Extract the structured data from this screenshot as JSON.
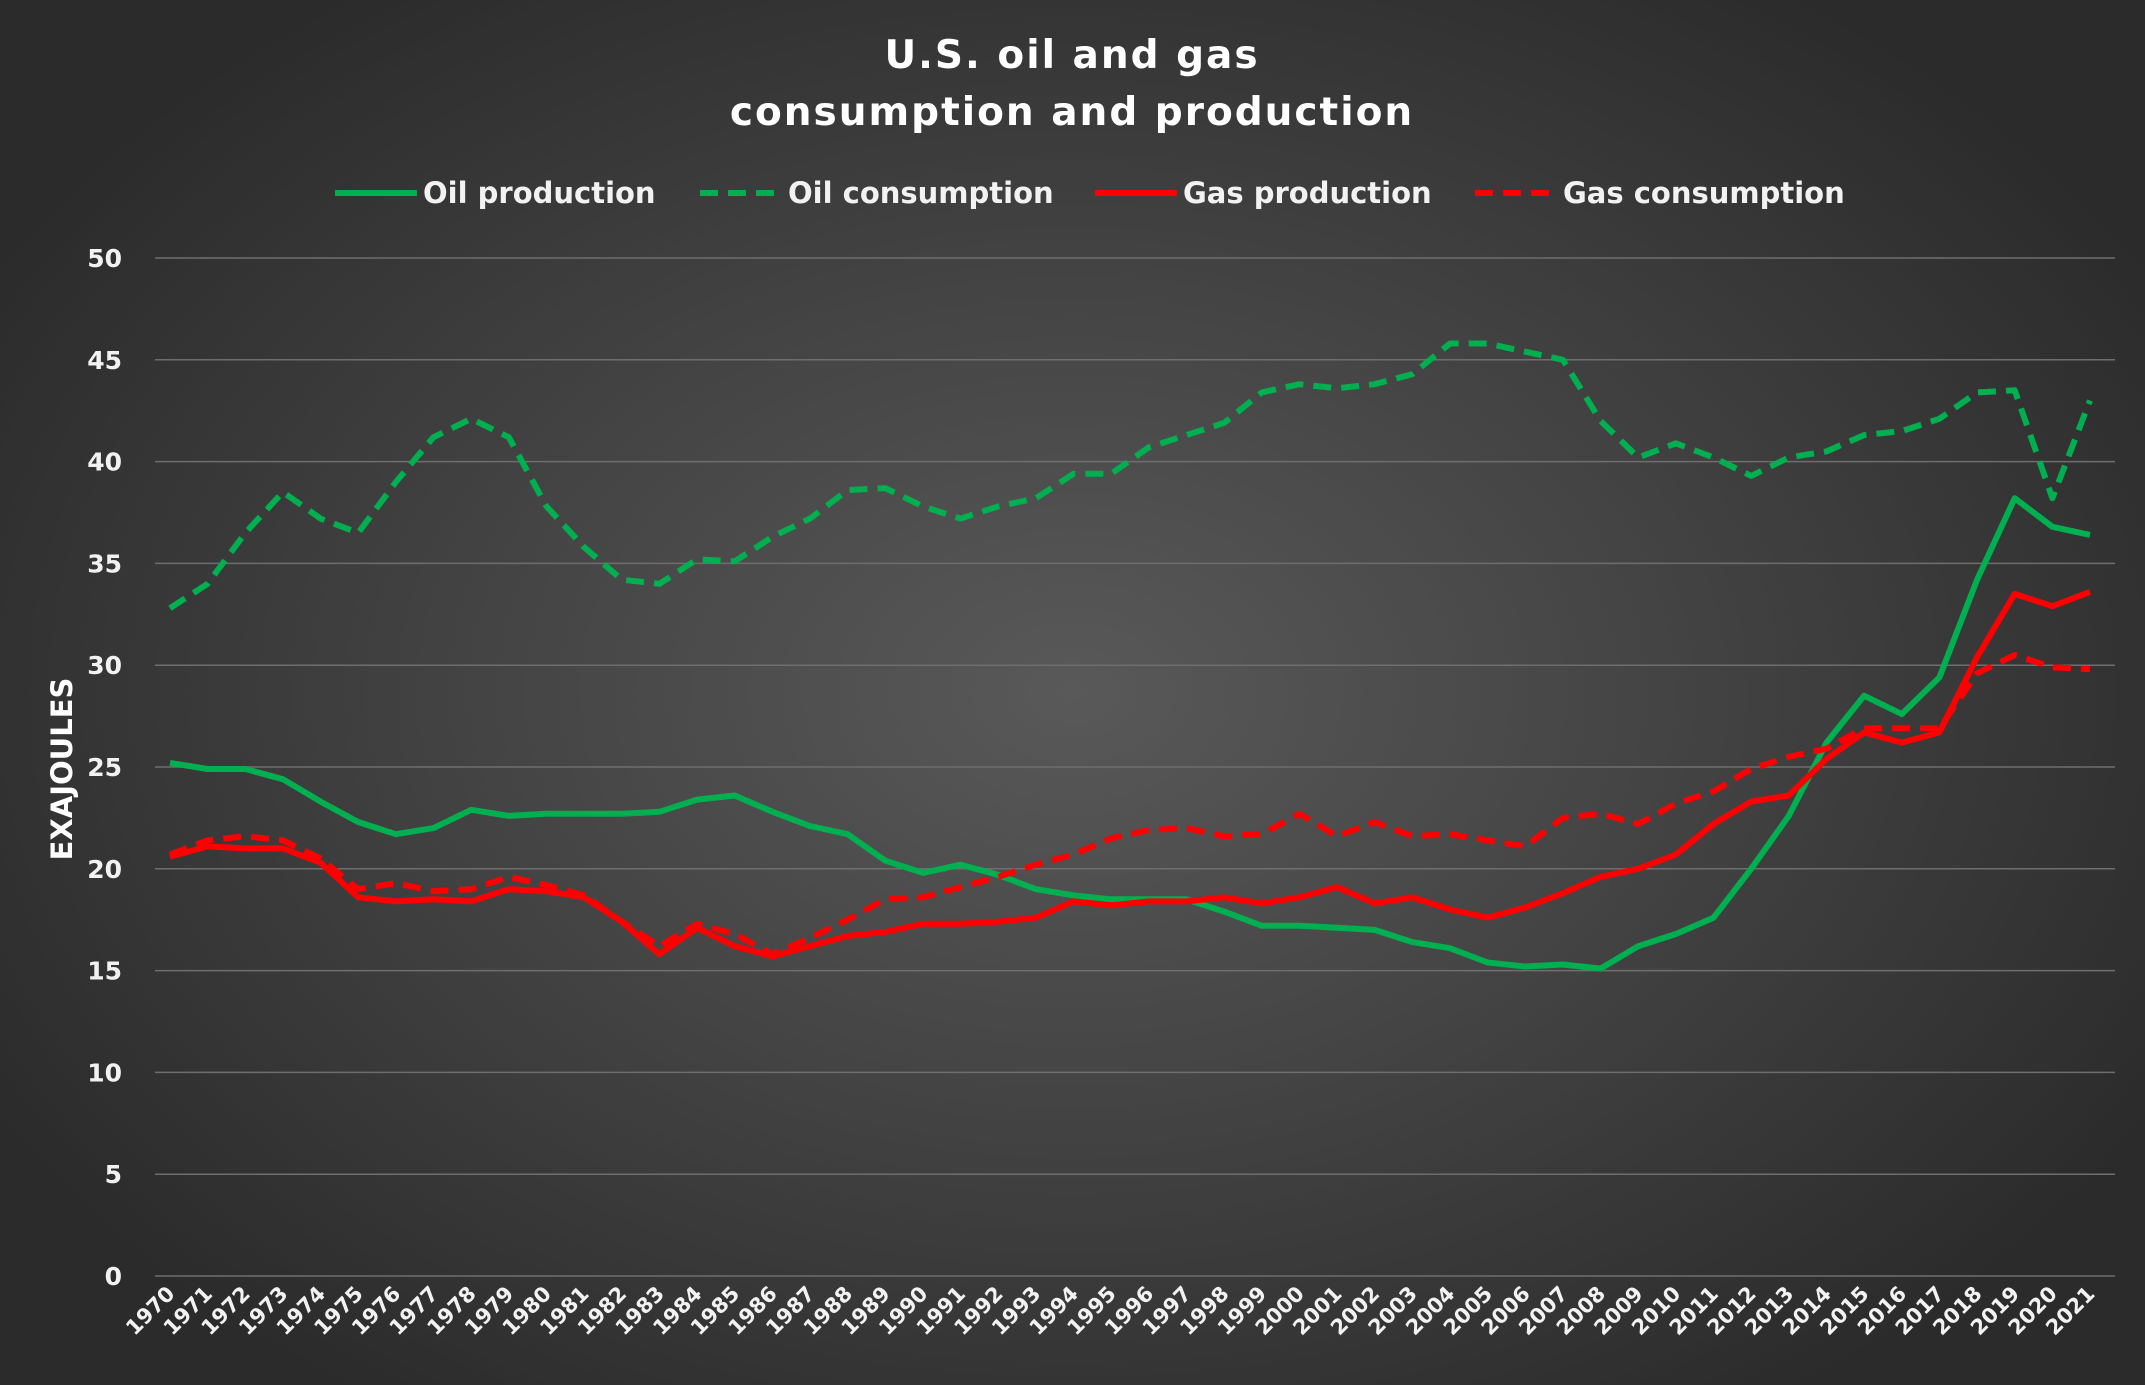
{
  "chart_data": {
    "type": "line",
    "title": [
      "U.S. oil and gas",
      "consumption and production"
    ],
    "ylabel": "EXAJOULES",
    "xlabel": "",
    "ylim": [
      0,
      50
    ],
    "yticks": [
      0,
      5,
      10,
      15,
      20,
      25,
      30,
      35,
      40,
      45,
      50
    ],
    "grid": true,
    "legend_position": "top",
    "x": [
      "1970",
      "1971",
      "1972",
      "1973",
      "1974",
      "1975",
      "1976",
      "1977",
      "1978",
      "1979",
      "1980",
      "1981",
      "1982",
      "1983",
      "1984",
      "1985",
      "1986",
      "1987",
      "1988",
      "1989",
      "1990",
      "1991",
      "1992",
      "1993",
      "1994",
      "1995",
      "1996",
      "1997",
      "1998",
      "1999",
      "2000",
      "2001",
      "2002",
      "2003",
      "2004",
      "2005",
      "2006",
      "2007",
      "2008",
      "2009",
      "2010",
      "2011",
      "2012",
      "2013",
      "2014",
      "2015",
      "2016",
      "2017",
      "2018",
      "2019",
      "2020",
      "2021"
    ],
    "series": [
      {
        "name": "Oil production",
        "color": "#00b050",
        "dashed": false,
        "values": [
          25.2,
          24.9,
          24.9,
          24.4,
          23.3,
          22.3,
          21.7,
          22.0,
          22.9,
          22.6,
          22.7,
          22.7,
          22.7,
          22.8,
          23.4,
          23.6,
          22.8,
          22.1,
          21.7,
          20.4,
          19.8,
          20.2,
          19.7,
          19.0,
          18.7,
          18.5,
          18.5,
          18.5,
          17.9,
          17.2,
          17.2,
          17.1,
          17.0,
          16.4,
          16.1,
          15.4,
          15.2,
          15.3,
          15.1,
          16.2,
          16.8,
          17.6,
          20.0,
          22.6,
          26.2,
          28.5,
          27.6,
          29.4,
          34.2,
          38.2,
          36.8,
          36.4
        ]
      },
      {
        "name": "Oil consumption",
        "color": "#00b050",
        "dashed": true,
        "values": [
          32.8,
          34.0,
          36.5,
          38.5,
          37.2,
          36.5,
          39.0,
          41.2,
          42.1,
          41.2,
          37.8,
          35.8,
          34.2,
          34.0,
          35.2,
          35.1,
          36.3,
          37.2,
          38.6,
          38.7,
          37.8,
          37.2,
          37.8,
          38.2,
          39.4,
          39.4,
          40.7,
          41.3,
          41.9,
          43.4,
          43.8,
          43.6,
          43.8,
          44.3,
          45.8,
          45.8,
          45.4,
          45.0,
          42.0,
          40.2,
          40.9,
          40.2,
          39.3,
          40.2,
          40.5,
          41.3,
          41.5,
          42.1,
          43.4,
          43.5,
          38.2,
          43.0
        ]
      },
      {
        "name": "Gas production",
        "color": "#ff0000",
        "dashed": false,
        "values": [
          20.6,
          21.1,
          21.0,
          21.0,
          20.3,
          18.6,
          18.4,
          18.5,
          18.4,
          19.0,
          18.9,
          18.6,
          17.4,
          15.8,
          17.1,
          16.2,
          15.7,
          16.2,
          16.7,
          16.9,
          17.3,
          17.3,
          17.4,
          17.6,
          18.4,
          18.2,
          18.4,
          18.4,
          18.6,
          18.3,
          18.6,
          19.1,
          18.3,
          18.6,
          18.0,
          17.6,
          18.1,
          18.8,
          19.6,
          20.0,
          20.7,
          22.2,
          23.3,
          23.6,
          25.4,
          26.7,
          26.2,
          26.7,
          30.4,
          33.5,
          32.9,
          33.6
        ]
      },
      {
        "name": "Gas consumption",
        "color": "#ff0000",
        "dashed": true,
        "values": [
          20.7,
          21.4,
          21.6,
          21.4,
          20.5,
          19.0,
          19.3,
          18.9,
          19.0,
          19.6,
          19.2,
          18.7,
          17.4,
          16.2,
          17.3,
          16.8,
          15.8,
          16.6,
          17.5,
          18.5,
          18.6,
          19.1,
          19.6,
          20.2,
          20.7,
          21.5,
          21.9,
          22.0,
          21.6,
          21.7,
          22.7,
          21.6,
          22.3,
          21.6,
          21.7,
          21.4,
          21.1,
          22.5,
          22.7,
          22.2,
          23.2,
          23.8,
          24.9,
          25.5,
          25.9,
          26.9,
          26.9,
          26.9,
          29.6,
          30.5,
          29.9,
          29.8
        ]
      }
    ]
  }
}
